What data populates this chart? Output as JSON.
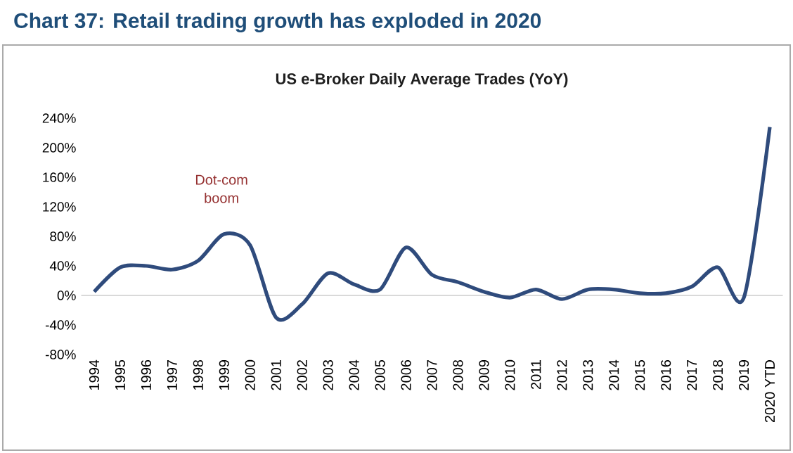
{
  "chart_data": {
    "type": "line",
    "title": "Chart 37: Retail trading growth has exploded in 2020",
    "subtitle": "US e-Broker Daily Average Trades (YoY)",
    "categories": [
      "1994",
      "1995",
      "1996",
      "1997",
      "1998",
      "1999",
      "2000",
      "2001",
      "2002",
      "2003",
      "2004",
      "2005",
      "2006",
      "2007",
      "2008",
      "2009",
      "2010",
      "2011",
      "2012",
      "2013",
      "2014",
      "2015",
      "2016",
      "2017",
      "2018",
      "2019",
      "2020 YTD"
    ],
    "series": [
      {
        "color": "#2f4b7c",
        "values": [
          5,
          38,
          40,
          35,
          47,
          83,
          68,
          -30,
          -12,
          30,
          15,
          8,
          65,
          28,
          18,
          5,
          -3,
          8,
          -5,
          8,
          8,
          3,
          3,
          12,
          38,
          -3,
          228
        ]
      }
    ],
    "ylim": [
      -80,
      240
    ],
    "yticks": [
      {
        "value": -80,
        "label": "-80%"
      },
      {
        "value": -40,
        "label": "-40%"
      },
      {
        "value": 0,
        "label": "0%"
      },
      {
        "value": 40,
        "label": "40%"
      },
      {
        "value": 80,
        "label": "80%"
      },
      {
        "value": 120,
        "label": "120%"
      },
      {
        "value": 160,
        "label": "160%"
      },
      {
        "value": 200,
        "label": "200%"
      },
      {
        "value": 240,
        "label": "240%"
      }
    ],
    "ref_lines": [
      {
        "axis": "y",
        "value": 0,
        "color": "#d9d9d9"
      }
    ],
    "annotations": [
      "Dot-com boom"
    ],
    "grid": false,
    "marker": "none",
    "line_style": "solid"
  }
}
